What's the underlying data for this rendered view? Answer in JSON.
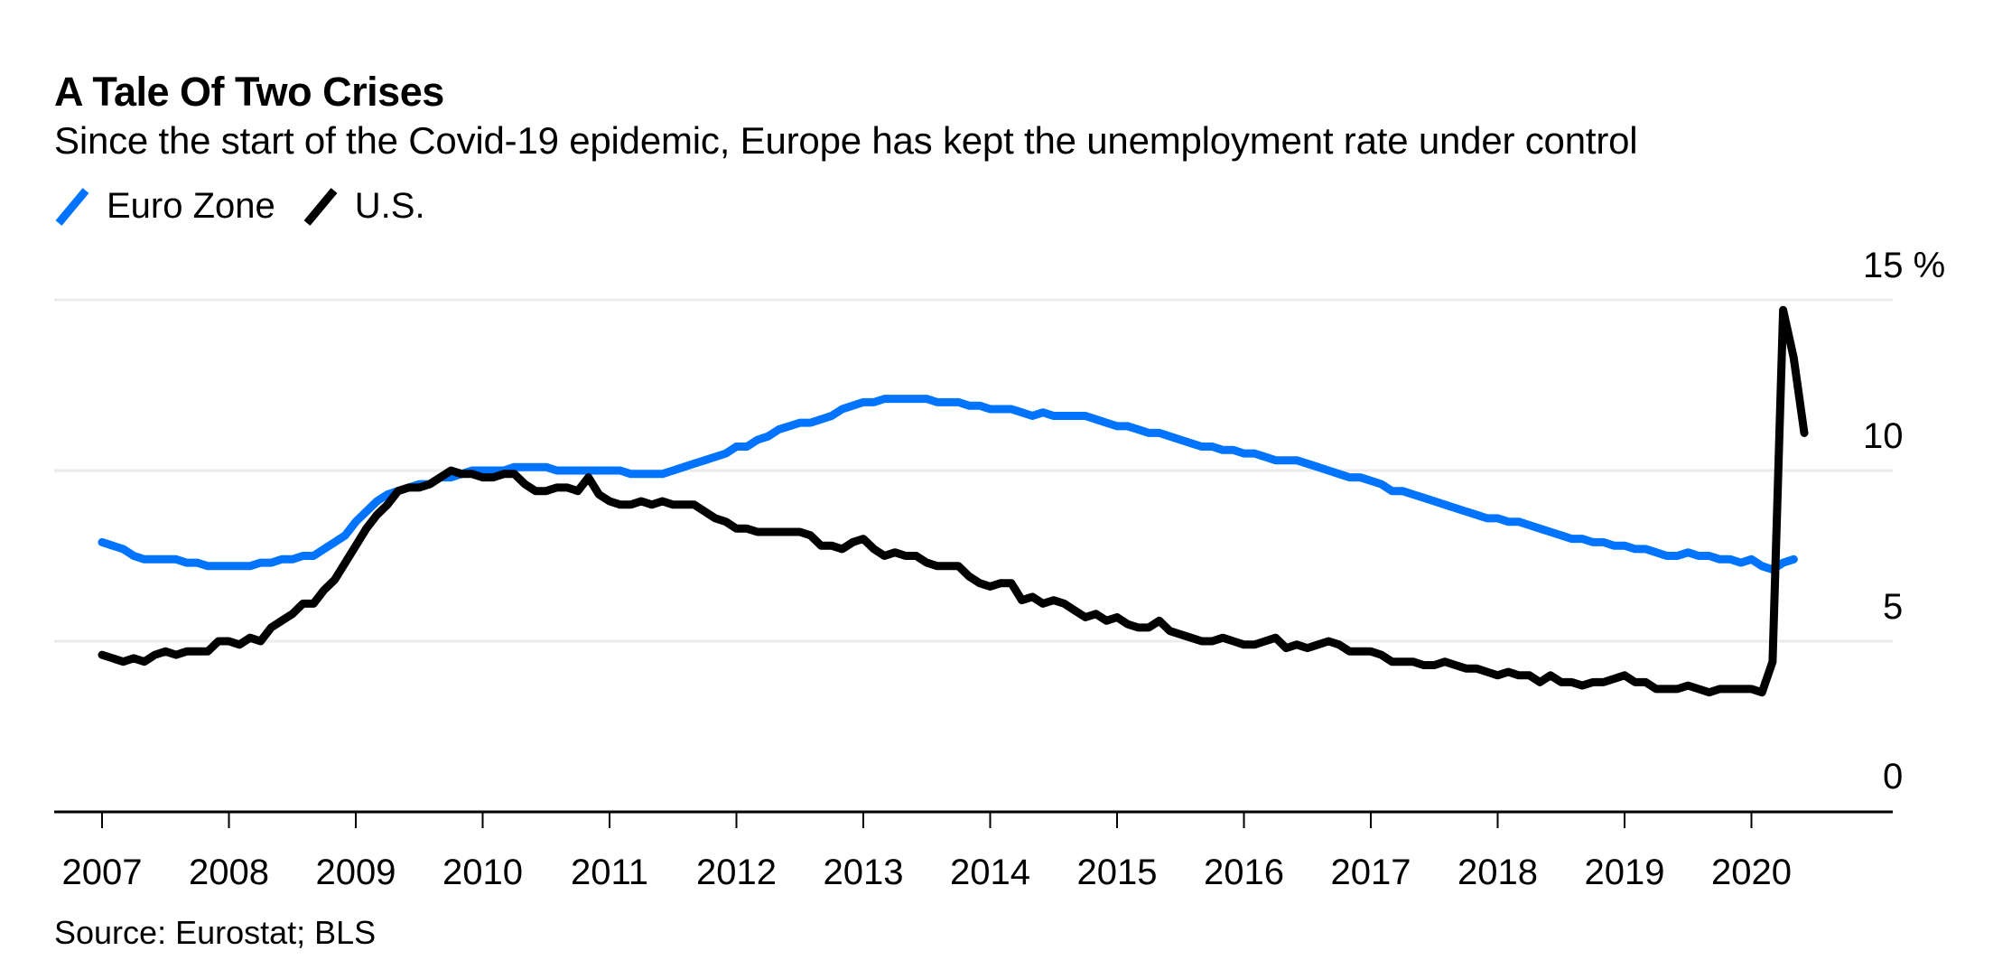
{
  "header": {
    "title": "A Tale Of Two Crises",
    "subtitle": "Since the start of the Covid-19 epidemic, Europe has kept the unemployment rate under control"
  },
  "legend": [
    {
      "name": "Euro Zone",
      "color": "#0073ff",
      "icon": "diagonal-line-icon"
    },
    {
      "name": "U.S.",
      "color": "#000000",
      "icon": "diagonal-line-icon"
    }
  ],
  "footer": {
    "source": "Source: Eurostat; BLS"
  },
  "chart_data": {
    "type": "line",
    "title": "A Tale Of Two Crises",
    "subtitle": "Since the start of the Covid-19 epidemic, Europe has kept the unemployment rate under control",
    "xlabel": "",
    "ylabel": "%",
    "x_start": "2007-01",
    "x_frequency": "monthly",
    "xlim": [
      2007,
      2021
    ],
    "ylim": [
      0,
      15
    ],
    "y_ticks": [
      0,
      5,
      10,
      15
    ],
    "y_tick_labels": [
      "0",
      "5",
      "10",
      "15 %"
    ],
    "y_axis_position": "right",
    "x_ticks": [
      2007,
      2008,
      2009,
      2010,
      2011,
      2012,
      2013,
      2014,
      2015,
      2016,
      2017,
      2018,
      2019,
      2020
    ],
    "x_tick_labels": [
      "2007",
      "2008",
      "2009",
      "2010",
      "2011",
      "2012",
      "2013",
      "2014",
      "2015",
      "2016",
      "2017",
      "2018",
      "2019",
      "2020"
    ],
    "grid": true,
    "legend_position": "top-left",
    "series": [
      {
        "name": "Euro Zone",
        "color": "#0073ff",
        "values": [
          7.9,
          7.8,
          7.7,
          7.5,
          7.4,
          7.4,
          7.4,
          7.4,
          7.3,
          7.3,
          7.2,
          7.2,
          7.2,
          7.2,
          7.2,
          7.3,
          7.3,
          7.4,
          7.4,
          7.5,
          7.5,
          7.7,
          7.9,
          8.1,
          8.5,
          8.8,
          9.1,
          9.3,
          9.4,
          9.5,
          9.6,
          9.6,
          9.8,
          9.8,
          9.9,
          10.0,
          10.0,
          10.0,
          10.0,
          10.1,
          10.1,
          10.1,
          10.1,
          10.0,
          10.0,
          10.0,
          10.0,
          10.0,
          10.0,
          10.0,
          9.9,
          9.9,
          9.9,
          9.9,
          10.0,
          10.1,
          10.2,
          10.3,
          10.4,
          10.5,
          10.7,
          10.7,
          10.9,
          11.0,
          11.2,
          11.3,
          11.4,
          11.4,
          11.5,
          11.6,
          11.8,
          11.9,
          12.0,
          12.0,
          12.1,
          12.1,
          12.1,
          12.1,
          12.1,
          12.0,
          12.0,
          12.0,
          11.9,
          11.9,
          11.8,
          11.8,
          11.8,
          11.7,
          11.6,
          11.7,
          11.6,
          11.6,
          11.6,
          11.6,
          11.5,
          11.4,
          11.3,
          11.3,
          11.2,
          11.1,
          11.1,
          11.0,
          10.9,
          10.8,
          10.7,
          10.7,
          10.6,
          10.6,
          10.5,
          10.5,
          10.4,
          10.3,
          10.3,
          10.3,
          10.2,
          10.1,
          10.0,
          9.9,
          9.8,
          9.8,
          9.7,
          9.6,
          9.4,
          9.4,
          9.3,
          9.2,
          9.1,
          9.0,
          8.9,
          8.8,
          8.7,
          8.6,
          8.6,
          8.5,
          8.5,
          8.4,
          8.3,
          8.2,
          8.1,
          8.0,
          8.0,
          7.9,
          7.9,
          7.8,
          7.8,
          7.7,
          7.7,
          7.6,
          7.5,
          7.5,
          7.6,
          7.5,
          7.5,
          7.4,
          7.4,
          7.3,
          7.4,
          7.2,
          7.1,
          7.3,
          7.4
        ]
      },
      {
        "name": "U.S.",
        "color": "#000000",
        "values": [
          4.6,
          4.5,
          4.4,
          4.5,
          4.4,
          4.6,
          4.7,
          4.6,
          4.7,
          4.7,
          4.7,
          5.0,
          5.0,
          4.9,
          5.1,
          5.0,
          5.4,
          5.6,
          5.8,
          6.1,
          6.1,
          6.5,
          6.8,
          7.3,
          7.8,
          8.3,
          8.7,
          9.0,
          9.4,
          9.5,
          9.5,
          9.6,
          9.8,
          10.0,
          9.9,
          9.9,
          9.8,
          9.8,
          9.9,
          9.9,
          9.6,
          9.4,
          9.4,
          9.5,
          9.5,
          9.4,
          9.8,
          9.3,
          9.1,
          9.0,
          9.0,
          9.1,
          9.0,
          9.1,
          9.0,
          9.0,
          9.0,
          8.8,
          8.6,
          8.5,
          8.3,
          8.3,
          8.2,
          8.2,
          8.2,
          8.2,
          8.2,
          8.1,
          7.8,
          7.8,
          7.7,
          7.9,
          8.0,
          7.7,
          7.5,
          7.6,
          7.5,
          7.5,
          7.3,
          7.2,
          7.2,
          7.2,
          6.9,
          6.7,
          6.6,
          6.7,
          6.7,
          6.2,
          6.3,
          6.1,
          6.2,
          6.1,
          5.9,
          5.7,
          5.8,
          5.6,
          5.7,
          5.5,
          5.4,
          5.4,
          5.6,
          5.3,
          5.2,
          5.1,
          5.0,
          5.0,
          5.1,
          5.0,
          4.9,
          4.9,
          5.0,
          5.1,
          4.8,
          4.9,
          4.8,
          4.9,
          5.0,
          4.9,
          4.7,
          4.7,
          4.7,
          4.6,
          4.4,
          4.4,
          4.4,
          4.3,
          4.3,
          4.4,
          4.3,
          4.2,
          4.2,
          4.1,
          4.0,
          4.1,
          4.0,
          4.0,
          3.8,
          4.0,
          3.8,
          3.8,
          3.7,
          3.8,
          3.8,
          3.9,
          4.0,
          3.8,
          3.8,
          3.6,
          3.6,
          3.6,
          3.7,
          3.6,
          3.5,
          3.6,
          3.6,
          3.6,
          3.6,
          3.5,
          4.4,
          14.7,
          13.3,
          11.1
        ]
      }
    ]
  }
}
